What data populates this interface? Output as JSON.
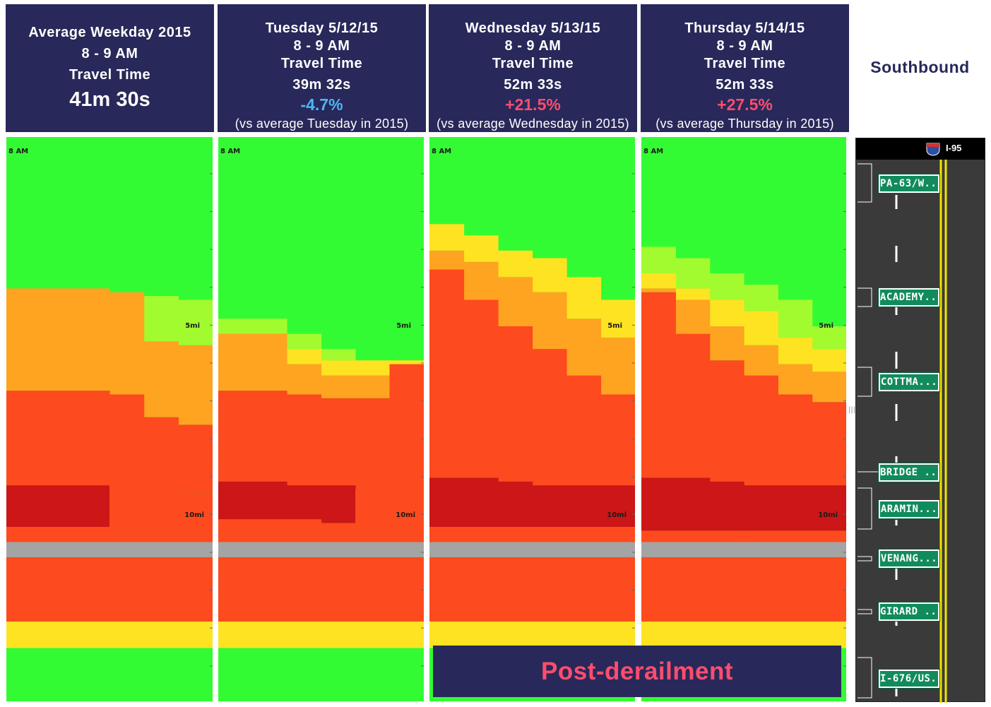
{
  "colors": {
    "header_bg": "#28285a",
    "green": "#33fb33",
    "yellowgreen": "#a2fb2e",
    "yellow": "#fde321",
    "orange": "#fea421",
    "redorange": "#fd4a1e",
    "darkred": "#cc1617",
    "gray": "#a4a4a4",
    "negative_pct": "#4eb6f4",
    "positive_pct": "#ff4d6d"
  },
  "panels": [
    {
      "title": "Average Weekday 2015",
      "time_window": "8 - 9 AM",
      "metric": "Travel Time",
      "travel_time": "41m 30s",
      "change": "",
      "comparison": ""
    },
    {
      "title": "Tuesday 5/12/15",
      "time_window": "8 - 9 AM",
      "metric": "Travel Time",
      "travel_time": "39m 32s",
      "change": "-4.7%",
      "comparison": "(vs average Tuesday in 2015)"
    },
    {
      "title": "Wednesday 5/13/15",
      "time_window": "8 - 9 AM",
      "metric": "Travel Time",
      "travel_time": "52m 33s",
      "change": "+21.5%",
      "comparison": "(vs average Wednesday in 2015)"
    },
    {
      "title": "Thursday 5/14/15",
      "time_window": "8 - 9 AM",
      "metric": "Travel Time",
      "travel_time": "52m 33s",
      "change": "+27.5%",
      "comparison": "(vs average Thursday in 2015)"
    }
  ],
  "direction": "Southbound",
  "road": {
    "name": "I-95",
    "exits": [
      "PA-63/W...",
      "ACADEMY...",
      "COTTMA...",
      "BRIDGE ...",
      "ARAMIN...",
      "VENANG...",
      "GIRARD ...",
      "I-676/US..."
    ]
  },
  "banner": "Post-derailment",
  "chart_data": [
    {
      "type": "heatmap",
      "title": "Average Weekday 2015",
      "time_label": "8 AM",
      "distance_ticks": [
        {
          "label": "5mi",
          "mi": 5
        },
        {
          "label": "10mi",
          "mi": 10
        }
      ],
      "columns": 6,
      "bands": [
        {
          "color": "green",
          "start": [
            0,
            0,
            0,
            0,
            0,
            0
          ],
          "end": [
            4.0,
            4.0,
            4.0,
            4.1,
            4.2,
            4.3
          ]
        },
        {
          "color": "yellowgreen",
          "start": [
            4.0,
            4.0,
            4.0,
            4.1,
            4.2,
            4.3
          ],
          "end": [
            4.0,
            4.0,
            4.0,
            4.1,
            5.4,
            5.5
          ]
        },
        {
          "color": "yellow",
          "start": [
            4.0,
            4.0,
            4.0,
            4.1,
            5.4,
            5.5
          ],
          "end": [
            4.0,
            4.0,
            4.0,
            4.1,
            5.4,
            5.5
          ]
        },
        {
          "color": "orange",
          "start": [
            4.0,
            4.0,
            4.0,
            4.1,
            5.4,
            5.5
          ],
          "end": [
            6.7,
            6.7,
            6.7,
            6.8,
            7.4,
            7.6
          ]
        },
        {
          "color": "redorange",
          "start": [
            6.7,
            6.7,
            6.7,
            6.8,
            7.4,
            7.6
          ],
          "end": [
            9.2,
            9.2,
            9.2,
            9.2,
            9.3,
            9.4
          ]
        },
        {
          "color": "darkred",
          "start": [
            9.2,
            9.2,
            9.2,
            9.2,
            9.3,
            9.4
          ],
          "end": [
            10.3,
            10.3,
            10.3,
            9.2,
            9.3,
            9.4
          ]
        },
        {
          "color": "redorange",
          "start": [
            10.3,
            10.3,
            10.3,
            9.2,
            9.3,
            9.4
          ],
          "end": [
            10.7,
            10.7,
            10.7,
            10.7,
            10.7,
            10.7
          ]
        },
        {
          "color": "gray",
          "start": [
            10.7,
            10.7,
            10.7,
            10.7,
            10.7,
            10.7
          ],
          "end": [
            11.1,
            11.1,
            11.1,
            11.1,
            11.1,
            11.1
          ]
        },
        {
          "color": "redorange",
          "start": [
            11.1,
            11.1,
            11.1,
            11.1,
            11.1,
            11.1
          ],
          "end": [
            12.8,
            12.8,
            12.8,
            12.8,
            12.8,
            12.8
          ]
        },
        {
          "color": "yellow",
          "start": [
            12.8,
            12.8,
            12.8,
            12.8,
            12.8,
            12.8
          ],
          "end": [
            13.5,
            13.5,
            13.5,
            13.5,
            13.5,
            13.5
          ]
        },
        {
          "color": "green",
          "start": [
            13.5,
            13.5,
            13.5,
            13.5,
            13.5,
            13.5
          ],
          "end": [
            14.9,
            14.9,
            14.9,
            14.9,
            14.9,
            14.9
          ]
        }
      ]
    },
    {
      "type": "heatmap",
      "title": "Tuesday 5/12/15",
      "time_label": "8 AM",
      "distance_ticks": [
        {
          "label": "5mi",
          "mi": 5
        },
        {
          "label": "10mi",
          "mi": 10
        }
      ],
      "columns": 6,
      "bands": [
        {
          "color": "green",
          "start": [
            0,
            0,
            0,
            0,
            0,
            0
          ],
          "end": [
            4.8,
            4.8,
            5.2,
            5.6,
            5.9,
            5.9
          ]
        },
        {
          "color": "yellowgreen",
          "start": [
            4.8,
            4.8,
            5.2,
            5.6,
            5.9,
            5.9
          ],
          "end": [
            5.2,
            5.2,
            5.6,
            5.9,
            5.9,
            5.9
          ]
        },
        {
          "color": "yellow",
          "start": [
            5.2,
            5.2,
            5.6,
            5.9,
            5.9,
            5.9
          ],
          "end": [
            5.2,
            5.2,
            6.0,
            6.3,
            6.3,
            6.0
          ]
        },
        {
          "color": "orange",
          "start": [
            5.2,
            5.2,
            6.0,
            6.3,
            6.3,
            6.0
          ],
          "end": [
            6.7,
            6.7,
            6.8,
            6.9,
            6.9,
            6.0
          ]
        },
        {
          "color": "redorange",
          "start": [
            6.7,
            6.7,
            6.8,
            6.9,
            6.9,
            6.0
          ],
          "end": [
            9.1,
            9.1,
            9.2,
            9.2,
            9.3,
            9.3
          ]
        },
        {
          "color": "darkred",
          "start": [
            9.1,
            9.1,
            9.2,
            9.2,
            9.3,
            9.3
          ],
          "end": [
            10.1,
            10.1,
            10.1,
            10.2,
            9.3,
            9.3
          ]
        },
        {
          "color": "redorange",
          "start": [
            10.1,
            10.1,
            10.1,
            10.2,
            9.3,
            9.3
          ],
          "end": [
            10.7,
            10.7,
            10.7,
            10.7,
            10.7,
            10.7
          ]
        },
        {
          "color": "gray",
          "start": [
            10.7,
            10.7,
            10.7,
            10.7,
            10.7,
            10.7
          ],
          "end": [
            11.1,
            11.1,
            11.1,
            11.1,
            11.1,
            11.1
          ]
        },
        {
          "color": "redorange",
          "start": [
            11.1,
            11.1,
            11.1,
            11.1,
            11.1,
            11.1
          ],
          "end": [
            12.8,
            12.8,
            12.8,
            12.8,
            12.8,
            12.8
          ]
        },
        {
          "color": "yellow",
          "start": [
            12.8,
            12.8,
            12.8,
            12.8,
            12.8,
            12.8
          ],
          "end": [
            13.5,
            13.5,
            13.5,
            13.5,
            13.5,
            13.5
          ]
        },
        {
          "color": "green",
          "start": [
            13.5,
            13.5,
            13.5,
            13.5,
            13.5,
            13.5
          ],
          "end": [
            14.9,
            14.9,
            14.9,
            14.9,
            14.9,
            14.9
          ]
        }
      ]
    },
    {
      "type": "heatmap",
      "title": "Wednesday 5/13/15",
      "time_label": "8 AM",
      "distance_ticks": [
        {
          "label": "5mi",
          "mi": 5
        },
        {
          "label": "10mi",
          "mi": 10
        }
      ],
      "columns": 6,
      "bands": [
        {
          "color": "green",
          "start": [
            0,
            0,
            0,
            0,
            0,
            0
          ],
          "end": [
            2.3,
            2.6,
            3.0,
            3.2,
            3.7,
            4.3
          ]
        },
        {
          "color": "yellow",
          "start": [
            2.3,
            2.6,
            3.0,
            3.2,
            3.7,
            4.3
          ],
          "end": [
            3.0,
            3.3,
            3.7,
            4.1,
            4.8,
            5.3
          ]
        },
        {
          "color": "orange",
          "start": [
            3.0,
            3.3,
            3.7,
            4.1,
            4.8,
            5.3
          ],
          "end": [
            3.5,
            4.3,
            5.0,
            5.6,
            6.3,
            6.8
          ]
        },
        {
          "color": "redorange",
          "start": [
            3.5,
            4.3,
            5.0,
            5.6,
            6.3,
            6.8
          ],
          "end": [
            9.0,
            9.0,
            9.1,
            9.2,
            9.2,
            9.2
          ]
        },
        {
          "color": "darkred",
          "start": [
            9.0,
            9.0,
            9.1,
            9.2,
            9.2,
            9.2
          ],
          "end": [
            10.3,
            10.3,
            10.3,
            10.3,
            10.3,
            10.3
          ]
        },
        {
          "color": "redorange",
          "start": [
            10.3,
            10.3,
            10.3,
            10.3,
            10.3,
            10.3
          ],
          "end": [
            10.7,
            10.7,
            10.7,
            10.7,
            10.7,
            10.7
          ]
        },
        {
          "color": "gray",
          "start": [
            10.7,
            10.7,
            10.7,
            10.7,
            10.7,
            10.7
          ],
          "end": [
            11.1,
            11.1,
            11.1,
            11.1,
            11.1,
            11.1
          ]
        },
        {
          "color": "redorange",
          "start": [
            11.1,
            11.1,
            11.1,
            11.1,
            11.1,
            11.1
          ],
          "end": [
            12.8,
            12.8,
            12.8,
            12.8,
            12.8,
            12.8
          ]
        },
        {
          "color": "yellow",
          "start": [
            12.8,
            12.8,
            12.8,
            12.8,
            12.8,
            12.8
          ],
          "end": [
            13.5,
            13.5,
            13.5,
            13.5,
            13.5,
            13.5
          ]
        },
        {
          "color": "green",
          "start": [
            13.5,
            13.5,
            13.5,
            13.5,
            13.5,
            13.5
          ],
          "end": [
            14.9,
            14.9,
            14.9,
            14.9,
            14.9,
            14.9
          ]
        }
      ]
    },
    {
      "type": "heatmap",
      "title": "Thursday 5/14/15",
      "time_label": "8 AM",
      "distance_ticks": [
        {
          "label": "5mi",
          "mi": 5
        },
        {
          "label": "10mi",
          "mi": 10
        }
      ],
      "columns": 6,
      "bands": [
        {
          "color": "green",
          "start": [
            0,
            0,
            0,
            0,
            0,
            0
          ],
          "end": [
            2.9,
            3.2,
            3.6,
            3.9,
            4.3,
            5.0
          ]
        },
        {
          "color": "yellowgreen",
          "start": [
            2.9,
            3.2,
            3.6,
            3.9,
            4.3,
            5.0
          ],
          "end": [
            3.6,
            4.0,
            4.3,
            4.6,
            5.3,
            5.6
          ]
        },
        {
          "color": "yellow",
          "start": [
            3.6,
            4.0,
            4.3,
            4.6,
            5.3,
            5.6
          ],
          "end": [
            4.0,
            4.3,
            5.0,
            5.5,
            6.0,
            6.2
          ]
        },
        {
          "color": "orange",
          "start": [
            4.0,
            4.3,
            5.0,
            5.5,
            6.0,
            6.2
          ],
          "end": [
            4.1,
            5.2,
            5.9,
            6.3,
            6.8,
            7.0
          ]
        },
        {
          "color": "redorange",
          "start": [
            4.1,
            5.2,
            5.9,
            6.3,
            6.8,
            7.0
          ],
          "end": [
            9.0,
            9.0,
            9.1,
            9.2,
            9.2,
            9.2
          ]
        },
        {
          "color": "darkred",
          "start": [
            9.0,
            9.0,
            9.1,
            9.2,
            9.2,
            9.2
          ],
          "end": [
            10.4,
            10.4,
            10.4,
            10.4,
            10.4,
            10.4
          ]
        },
        {
          "color": "redorange",
          "start": [
            10.4,
            10.4,
            10.4,
            10.4,
            10.4,
            10.4
          ],
          "end": [
            10.7,
            10.7,
            10.7,
            10.7,
            10.7,
            10.7
          ]
        },
        {
          "color": "gray",
          "start": [
            10.7,
            10.7,
            10.7,
            10.7,
            10.7,
            10.7
          ],
          "end": [
            11.1,
            11.1,
            11.1,
            11.1,
            11.1,
            11.1
          ]
        },
        {
          "color": "redorange",
          "start": [
            11.1,
            11.1,
            11.1,
            11.1,
            11.1,
            11.1
          ],
          "end": [
            12.8,
            12.8,
            12.8,
            12.8,
            12.8,
            12.8
          ]
        },
        {
          "color": "yellow",
          "start": [
            12.8,
            12.8,
            12.8,
            12.8,
            12.8,
            12.8
          ],
          "end": [
            13.5,
            13.5,
            13.5,
            13.5,
            13.5,
            13.5
          ]
        },
        {
          "color": "green",
          "start": [
            13.5,
            13.5,
            13.5,
            13.5,
            13.5,
            13.5
          ],
          "end": [
            14.9,
            14.9,
            14.9,
            14.9,
            14.9,
            14.9
          ]
        }
      ]
    }
  ]
}
